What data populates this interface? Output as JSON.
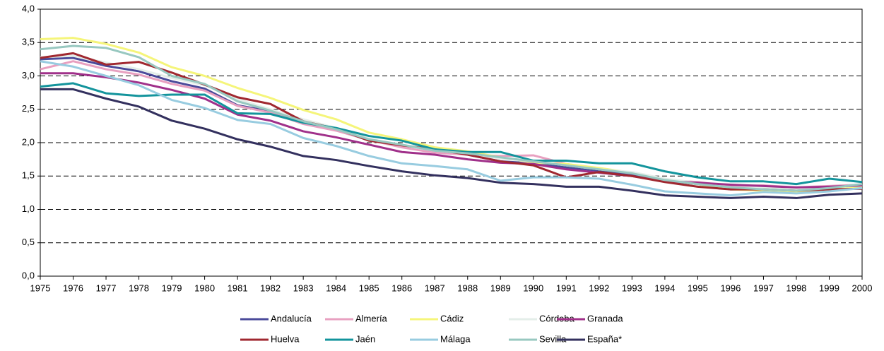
{
  "chart_data": {
    "type": "line",
    "x": [
      1975,
      1976,
      1977,
      1978,
      1979,
      1980,
      1981,
      1982,
      1983,
      1984,
      1985,
      1986,
      1987,
      1988,
      1989,
      1990,
      1991,
      1992,
      1993,
      1994,
      1995,
      1996,
      1997,
      1998,
      1999,
      2000
    ],
    "xlim": [
      1975,
      2000
    ],
    "xticks": [
      1975,
      1976,
      1977,
      1978,
      1979,
      1980,
      1981,
      1982,
      1983,
      1984,
      1985,
      1986,
      1987,
      1988,
      1989,
      1990,
      1991,
      1992,
      1993,
      1994,
      1995,
      1996,
      1997,
      1998,
      1999,
      2000
    ],
    "ylim": [
      0,
      4
    ],
    "yticks": [
      {
        "value": 0,
        "label": "0,0"
      },
      {
        "value": 0.5,
        "label": "0,5"
      },
      {
        "value": 1,
        "label": "1,0"
      },
      {
        "value": 1.5,
        "label": "1,5"
      },
      {
        "value": 2,
        "label": "2,0"
      },
      {
        "value": 2.5,
        "label": "2,5"
      },
      {
        "value": 3,
        "label": "3,0"
      },
      {
        "value": 3.5,
        "label": "3,5"
      },
      {
        "value": 4,
        "label": "4,0"
      }
    ],
    "grid": true,
    "series": [
      {
        "name": "Andalucía",
        "color": "#4a4a9a",
        "values": [
          3.25,
          3.27,
          3.15,
          3.07,
          2.92,
          2.81,
          2.56,
          2.47,
          2.31,
          2.2,
          2.05,
          1.95,
          1.87,
          1.82,
          1.72,
          1.69,
          1.63,
          1.58,
          1.53,
          1.43,
          1.38,
          1.3,
          1.3,
          1.27,
          1.3,
          1.33
        ]
      },
      {
        "name": "Almería",
        "color": "#e8a0c0",
        "values": [
          3.1,
          3.22,
          3.1,
          3.02,
          2.88,
          2.78,
          2.55,
          2.45,
          2.28,
          2.18,
          2.04,
          1.93,
          1.85,
          1.82,
          1.8,
          1.81,
          1.68,
          1.6,
          1.55,
          1.44,
          1.41,
          1.35,
          1.36,
          1.33,
          1.35,
          1.37
        ]
      },
      {
        "name": "Cádiz",
        "color": "#f5f57a",
        "values": [
          3.55,
          3.57,
          3.48,
          3.35,
          3.13,
          3.0,
          2.82,
          2.67,
          2.49,
          2.35,
          2.15,
          2.05,
          1.93,
          1.87,
          1.78,
          1.7,
          1.68,
          1.62,
          1.55,
          1.44,
          1.38,
          1.3,
          1.28,
          1.26,
          1.3,
          1.33
        ]
      },
      {
        "name": "Córdoba",
        "color": "#e4eee9",
        "values": [
          3.28,
          3.3,
          3.2,
          3.1,
          2.97,
          2.86,
          2.65,
          2.5,
          2.35,
          2.22,
          2.06,
          1.96,
          1.88,
          1.84,
          1.76,
          1.72,
          1.66,
          1.6,
          1.56,
          1.46,
          1.4,
          1.33,
          1.32,
          1.3,
          1.33,
          1.36
        ]
      },
      {
        "name": "Granada",
        "color": "#a0308a",
        "values": [
          3.04,
          3.04,
          2.98,
          2.9,
          2.79,
          2.66,
          2.42,
          2.33,
          2.17,
          2.08,
          1.97,
          1.86,
          1.82,
          1.75,
          1.7,
          1.68,
          1.6,
          1.55,
          1.5,
          1.42,
          1.4,
          1.37,
          1.35,
          1.33,
          1.34,
          1.36
        ]
      },
      {
        "name": "Huelva",
        "color": "#a02830",
        "values": [
          3.27,
          3.34,
          3.17,
          3.21,
          3.05,
          2.87,
          2.68,
          2.58,
          2.32,
          2.21,
          2.03,
          1.96,
          1.9,
          1.82,
          1.72,
          1.66,
          1.48,
          1.56,
          1.5,
          1.41,
          1.34,
          1.3,
          1.3,
          1.28,
          1.3,
          1.31
        ]
      },
      {
        "name": "Jaén",
        "color": "#13949c",
        "values": [
          2.84,
          2.89,
          2.74,
          2.7,
          2.72,
          2.72,
          2.44,
          2.43,
          2.3,
          2.22,
          2.1,
          2.03,
          1.9,
          1.86,
          1.86,
          1.73,
          1.73,
          1.69,
          1.69,
          1.57,
          1.48,
          1.42,
          1.42,
          1.38,
          1.46,
          1.41
        ]
      },
      {
        "name": "Málaga",
        "color": "#98cce0",
        "values": [
          3.22,
          3.14,
          3.0,
          2.86,
          2.64,
          2.52,
          2.34,
          2.28,
          2.07,
          1.95,
          1.8,
          1.69,
          1.65,
          1.6,
          1.43,
          1.48,
          1.48,
          1.46,
          1.37,
          1.27,
          1.24,
          1.21,
          1.26,
          1.24,
          1.27,
          1.32
        ]
      },
      {
        "name": "Sevilla",
        "color": "#98c8c0",
        "values": [
          3.4,
          3.45,
          3.42,
          3.28,
          3.0,
          2.88,
          2.62,
          2.48,
          2.32,
          2.2,
          2.05,
          1.97,
          1.88,
          1.84,
          1.78,
          1.72,
          1.66,
          1.6,
          1.54,
          1.44,
          1.38,
          1.33,
          1.3,
          1.28,
          1.32,
          1.38
        ]
      },
      {
        "name": "España*",
        "color": "#33305e",
        "values": [
          2.8,
          2.8,
          2.66,
          2.54,
          2.33,
          2.21,
          2.05,
          1.94,
          1.8,
          1.74,
          1.65,
          1.57,
          1.51,
          1.47,
          1.4,
          1.38,
          1.34,
          1.34,
          1.28,
          1.21,
          1.19,
          1.17,
          1.19,
          1.17,
          1.22,
          1.24
        ]
      }
    ]
  }
}
